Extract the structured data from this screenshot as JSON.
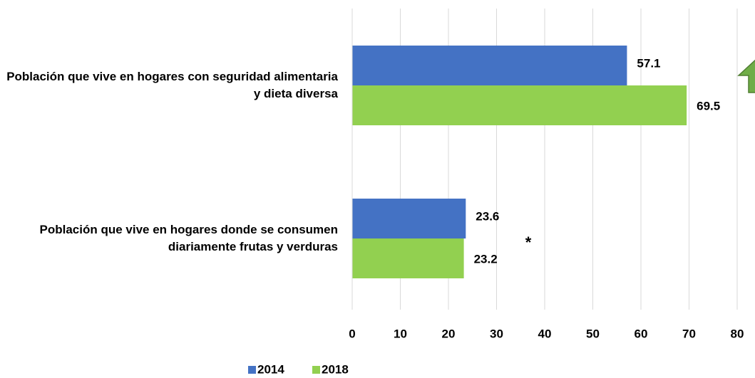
{
  "chart_data": {
    "type": "bar",
    "orientation": "horizontal",
    "categories": [
      "Población que vive en hogares con seguridad alimentaria y dieta diversa",
      "Población que vive en hogares donde se consumen diariamente frutas y verduras"
    ],
    "series": [
      {
        "name": "2014",
        "color": "#4472c4",
        "values": [
          57.1,
          23.6
        ]
      },
      {
        "name": "2018",
        "color": "#92d050",
        "values": [
          69.5,
          23.2
        ]
      }
    ],
    "xlim": [
      0,
      80
    ],
    "xticks": [
      0,
      10,
      20,
      30,
      40,
      50,
      60,
      70,
      80
    ],
    "grid": true,
    "annotations": [
      "*"
    ],
    "legend": "bottom"
  }
}
